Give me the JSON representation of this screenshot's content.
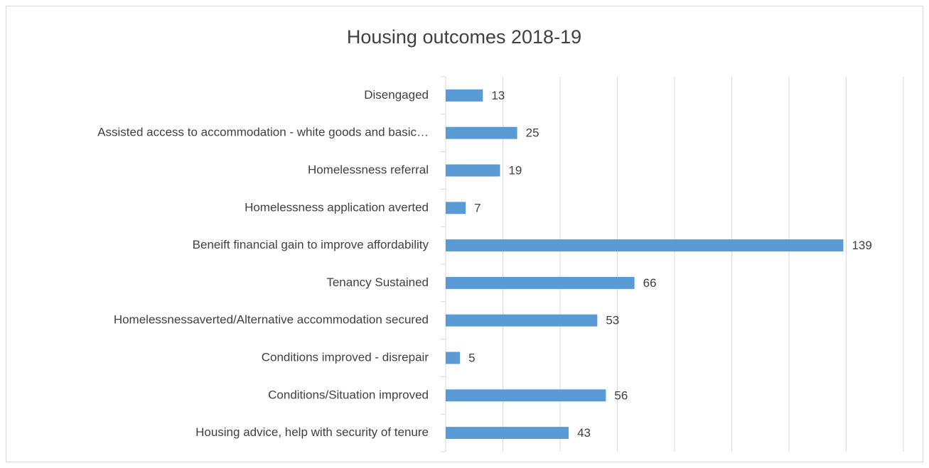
{
  "chart_data": {
    "type": "bar",
    "orientation": "horizontal",
    "title": "Housing outcomes 2018-19",
    "categories": [
      "Disengaged",
      "Assisted access to accommodation - white goods and basic…",
      "Homelessness referral",
      "Homelessness application averted",
      "Beneift financial gain to improve affordability",
      "Tenancy Sustained",
      "Homelessnessaverted/Alternative accommodation secured",
      "Conditions improved - disrepair",
      "Conditions/Situation improved",
      "Housing advice, help with security of tenure"
    ],
    "values": [
      13,
      25,
      19,
      7,
      139,
      66,
      53,
      5,
      56,
      43
    ],
    "color": "#5b9bd5",
    "xlim": [
      0,
      160
    ],
    "xticks": [
      0,
      20,
      40,
      60,
      80,
      100,
      120,
      140,
      160
    ],
    "grid": true
  }
}
